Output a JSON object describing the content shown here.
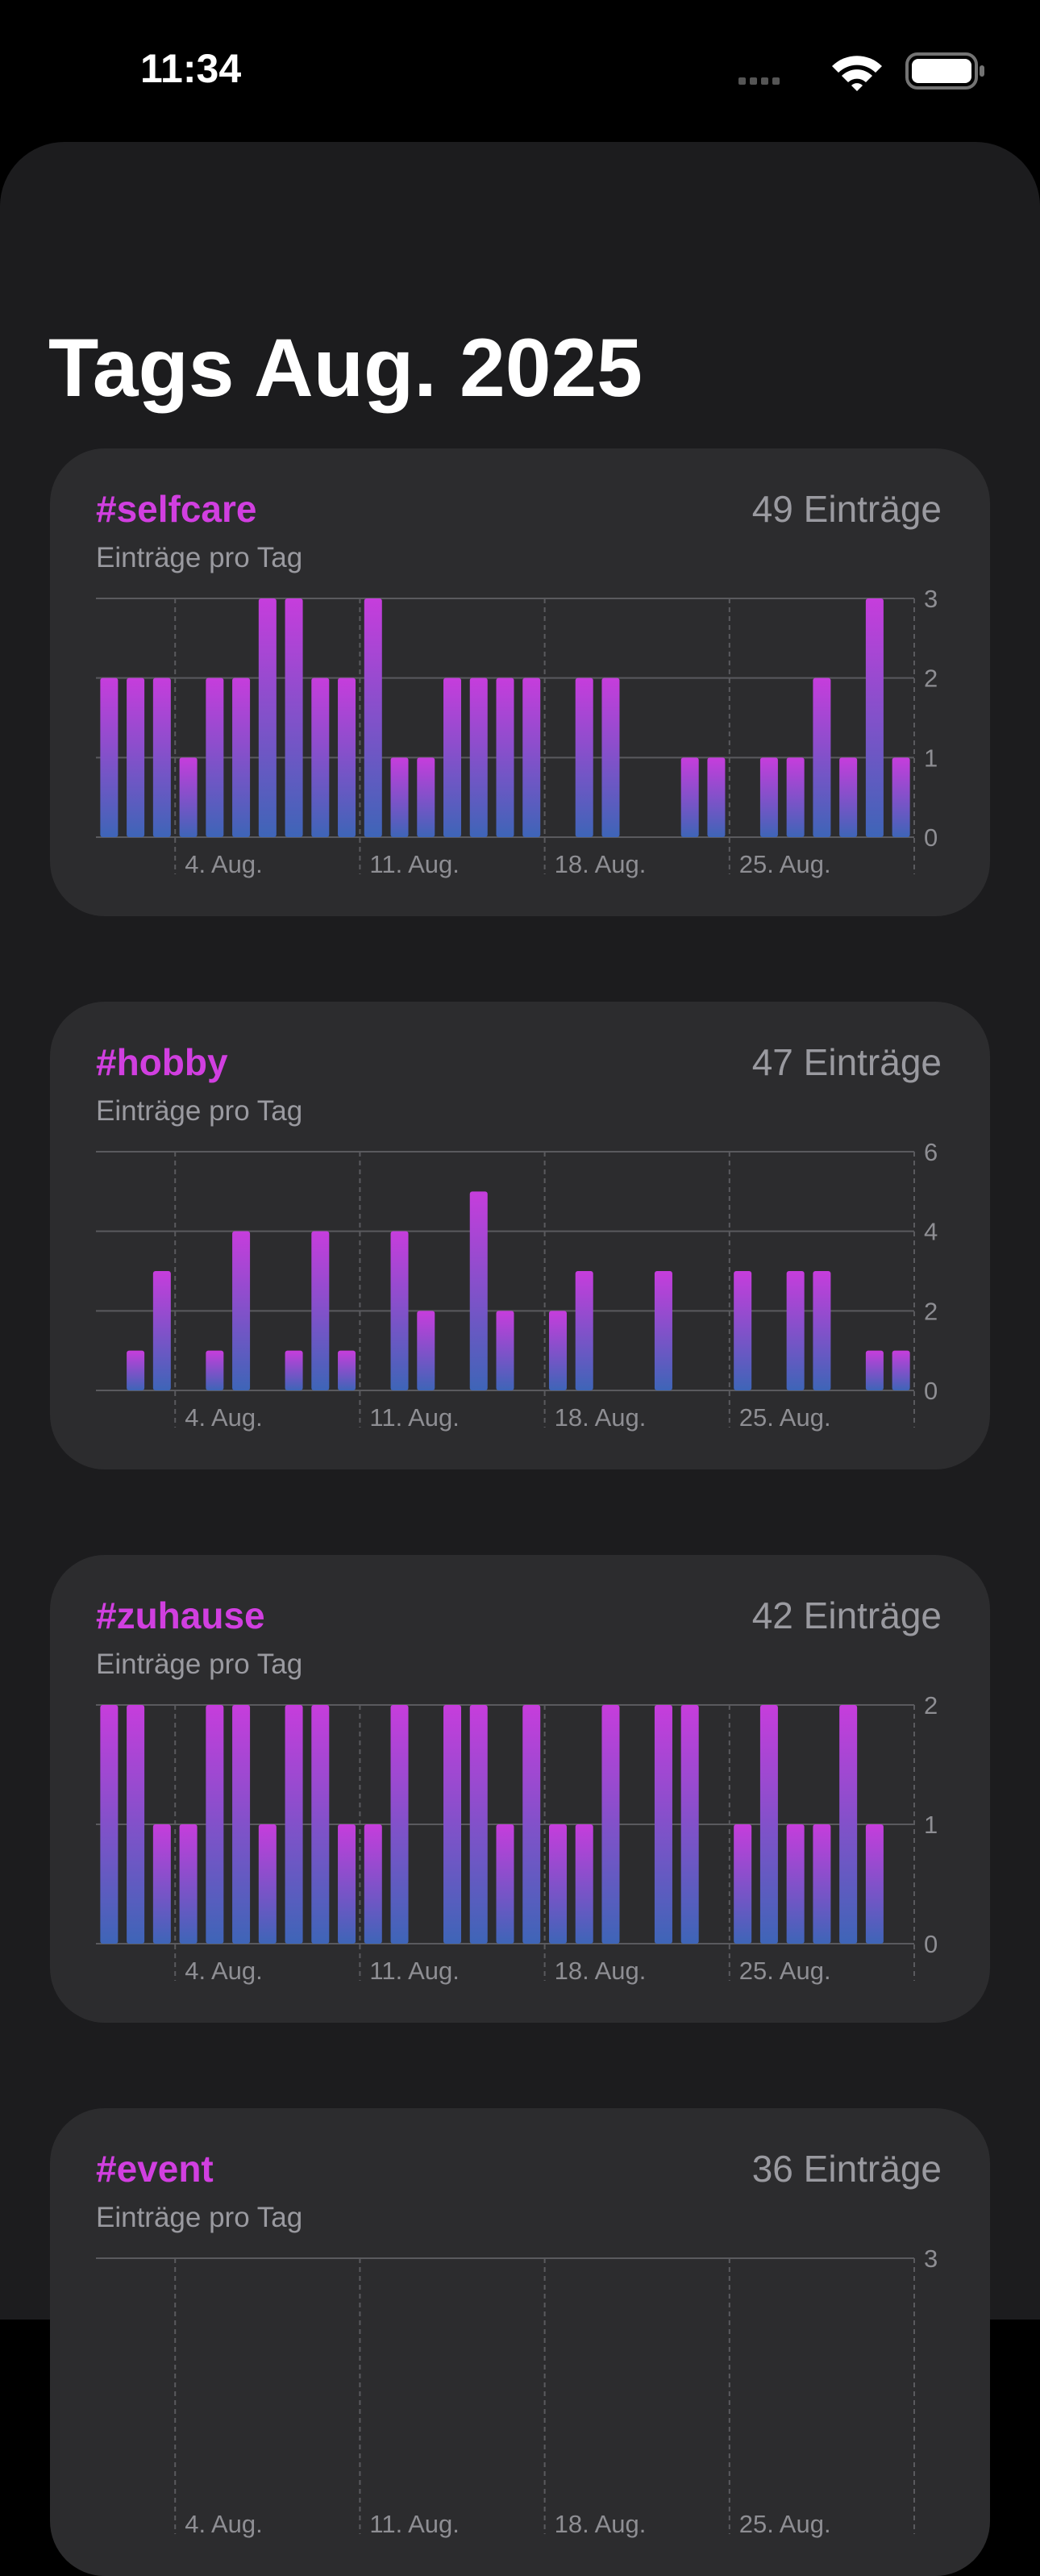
{
  "status_bar": {
    "time": "11:34",
    "icons": [
      "cellular-signal-icon",
      "wifi-icon",
      "battery-icon"
    ]
  },
  "page": {
    "title": "Tags Aug. 2025"
  },
  "colors": {
    "tag": "#d13fe0",
    "bar_top": "#c63ddc",
    "bar_bottom": "#3e65b7",
    "card_bg": "#2c2c2e",
    "sheet_bg": "#1c1c1e",
    "secondary_text": "#9a9aa0"
  },
  "x_axis": {
    "ticks": [
      {
        "day": 4,
        "label": "4. Aug."
      },
      {
        "day": 11,
        "label": "11. Aug."
      },
      {
        "day": 18,
        "label": "18. Aug."
      },
      {
        "day": 25,
        "label": "25. Aug."
      }
    ],
    "days_shown": 31
  },
  "cards": [
    {
      "tag": "#selfcare",
      "count": "49 Einträge",
      "subtitle": "Einträge pro Tag",
      "chart_data": {
        "type": "bar",
        "x": [
          1,
          2,
          3,
          4,
          5,
          6,
          7,
          8,
          9,
          10,
          11,
          12,
          13,
          14,
          15,
          16,
          17,
          18,
          19,
          20,
          21,
          22,
          23,
          24,
          25,
          26,
          27,
          28,
          29,
          30,
          31
        ],
        "values": [
          2,
          2,
          2,
          1,
          2,
          2,
          3,
          3,
          2,
          2,
          3,
          1,
          1,
          2,
          2,
          2,
          2,
          0,
          2,
          2,
          0,
          0,
          1,
          1,
          0,
          1,
          1,
          2,
          1,
          3,
          1
        ],
        "ylim": [
          0,
          3
        ],
        "yticks": [
          0,
          1,
          2,
          3
        ]
      }
    },
    {
      "tag": "#hobby",
      "count": "47 Einträge",
      "subtitle": "Einträge pro Tag",
      "chart_data": {
        "type": "bar",
        "x": [
          1,
          2,
          3,
          4,
          5,
          6,
          7,
          8,
          9,
          10,
          11,
          12,
          13,
          14,
          15,
          16,
          17,
          18,
          19,
          20,
          21,
          22,
          23,
          24,
          25,
          26,
          27,
          28,
          29,
          30,
          31
        ],
        "values": [
          0,
          1,
          3,
          0,
          1,
          4,
          0,
          1,
          4,
          1,
          0,
          4,
          2,
          0,
          5,
          2,
          0,
          2,
          3,
          0,
          0,
          3,
          0,
          0,
          3,
          0,
          3,
          3,
          0,
          1,
          1
        ],
        "ylim": [
          0,
          6
        ],
        "yticks": [
          0,
          2,
          4,
          6
        ]
      }
    },
    {
      "tag": "#zuhause",
      "count": "42 Einträge",
      "subtitle": "Einträge pro Tag",
      "chart_data": {
        "type": "bar",
        "x": [
          1,
          2,
          3,
          4,
          5,
          6,
          7,
          8,
          9,
          10,
          11,
          12,
          13,
          14,
          15,
          16,
          17,
          18,
          19,
          20,
          21,
          22,
          23,
          24,
          25,
          26,
          27,
          28,
          29,
          30,
          31
        ],
        "values": [
          2,
          2,
          1,
          1,
          2,
          2,
          1,
          2,
          2,
          1,
          1,
          2,
          0,
          2,
          2,
          1,
          2,
          1,
          1,
          2,
          0,
          2,
          2,
          0,
          1,
          2,
          1,
          1,
          2,
          1,
          0
        ],
        "ylim": [
          0,
          2
        ],
        "yticks": [
          0,
          1,
          2
        ]
      }
    },
    {
      "tag": "#event",
      "count": "36 Einträge",
      "subtitle": "Einträge pro Tag",
      "chart_data": {
        "type": "bar",
        "ylim": [
          0,
          3
        ],
        "yticks": [
          3
        ]
      }
    }
  ]
}
